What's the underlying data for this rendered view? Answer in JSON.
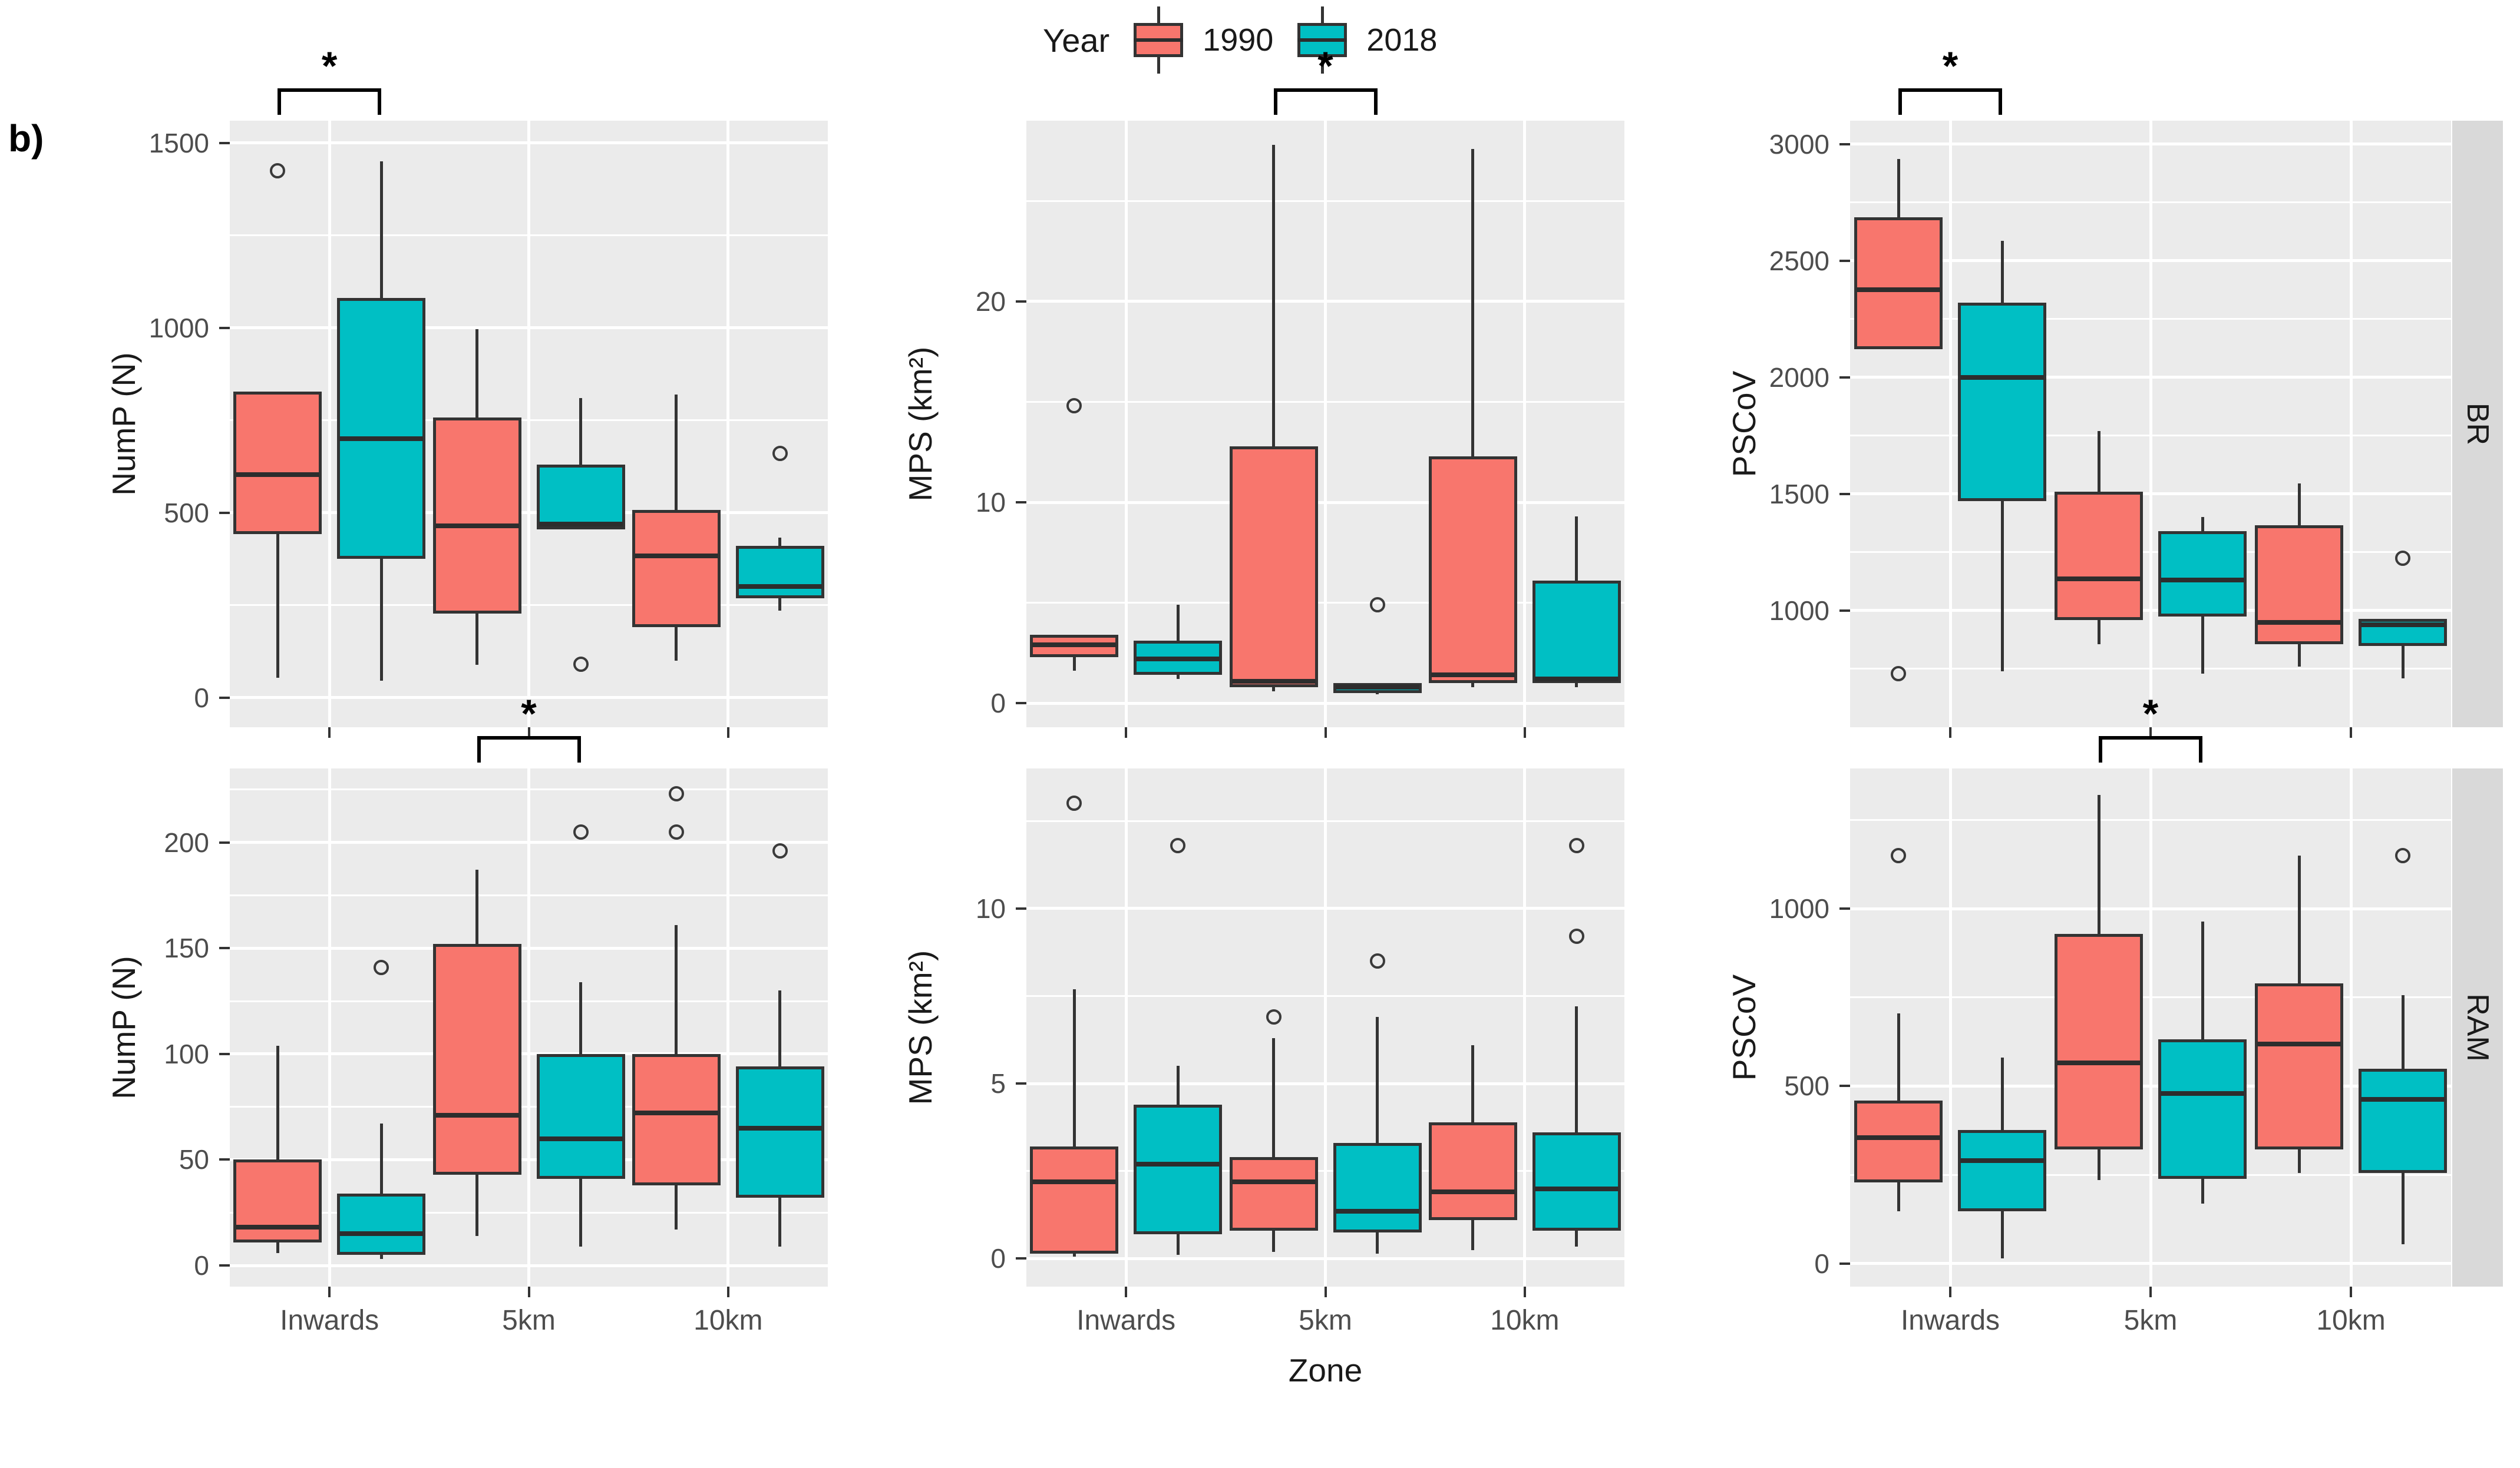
{
  "figure_label": "b)",
  "legend": {
    "title": "Year",
    "entries": [
      {
        "label": "1990",
        "color": "#F8766D"
      },
      {
        "label": "2018",
        "color": "#00BFC4"
      }
    ]
  },
  "colors": {
    "series_1990": "#F8766D",
    "series_2018": "#00BFC4",
    "box_border": "#333333",
    "panel_background": "#EBEBEB",
    "gridline": "#FFFFFF",
    "strip_background": "#D9D9D9",
    "tick_text": "#4D4D4D",
    "significance": "#000000"
  },
  "chart_data": {
    "type": "boxplot-facets",
    "x_title": "Zone",
    "categories": [
      "Inwards",
      "5km",
      "10km"
    ],
    "series_names": [
      "1990",
      "2018"
    ],
    "facet_rows": [
      "BR",
      "RAM"
    ],
    "panels": [
      {
        "facet": "BR",
        "metric": "NumP (N)",
        "row": 0,
        "col": 0,
        "yticks": [
          0,
          500,
          1000,
          1500
        ],
        "ylim": [
          -80,
          1560
        ],
        "significance": {
          "category": "Inwards",
          "label": "*"
        },
        "boxes": [
          {
            "category": "Inwards",
            "year": "1990",
            "whisker_low": 54,
            "q1": 442,
            "median": 603,
            "q3": 828,
            "whisker_high": 828,
            "outliers": [
              1424
            ]
          },
          {
            "category": "Inwards",
            "year": "2018",
            "whisker_low": 45,
            "q1": 375,
            "median": 700,
            "q3": 1080,
            "whisker_high": 1450,
            "outliers": []
          },
          {
            "category": "5km",
            "year": "1990",
            "whisker_low": 89,
            "q1": 228,
            "median": 465,
            "q3": 757,
            "whisker_high": 996,
            "outliers": []
          },
          {
            "category": "5km",
            "year": "2018",
            "whisker_low": 455,
            "q1": 455,
            "median": 470,
            "q3": 630,
            "whisker_high": 810,
            "outliers": [
              90
            ]
          },
          {
            "category": "10km",
            "year": "1990",
            "whisker_low": 100,
            "q1": 190,
            "median": 383,
            "q3": 508,
            "whisker_high": 820,
            "outliers": []
          },
          {
            "category": "10km",
            "year": "2018",
            "whisker_low": 235,
            "q1": 268,
            "median": 300,
            "q3": 410,
            "whisker_high": 432,
            "outliers": [
              660
            ]
          }
        ]
      },
      {
        "facet": "BR",
        "metric": "MPS (km²)",
        "row": 0,
        "col": 1,
        "yticks": [
          0,
          10,
          20
        ],
        "ylim": [
          -1.2,
          29
        ],
        "significance": {
          "category": "5km",
          "label": "*"
        },
        "boxes": [
          {
            "category": "Inwards",
            "year": "1990",
            "whisker_low": 1.6,
            "q1": 2.3,
            "median": 2.9,
            "q3": 3.4,
            "whisker_high": 3.4,
            "outliers": [
              14.8
            ]
          },
          {
            "category": "Inwards",
            "year": "2018",
            "whisker_low": 1.2,
            "q1": 1.4,
            "median": 2.2,
            "q3": 3.1,
            "whisker_high": 4.9,
            "outliers": []
          },
          {
            "category": "5km",
            "year": "1990",
            "whisker_low": 0.6,
            "q1": 0.8,
            "median": 1.1,
            "q3": 12.8,
            "whisker_high": 27.8,
            "outliers": []
          },
          {
            "category": "5km",
            "year": "2018",
            "whisker_low": 0.45,
            "q1": 0.5,
            "median": 0.8,
            "q3": 1.0,
            "whisker_high": 1.0,
            "outliers": [
              4.9
            ]
          },
          {
            "category": "10km",
            "year": "1990",
            "whisker_low": 0.8,
            "q1": 1.0,
            "median": 1.4,
            "q3": 12.3,
            "whisker_high": 27.6,
            "outliers": []
          },
          {
            "category": "10km",
            "year": "2018",
            "whisker_low": 0.8,
            "q1": 1.0,
            "median": 1.2,
            "q3": 6.1,
            "whisker_high": 9.3,
            "outliers": []
          }
        ]
      },
      {
        "facet": "BR",
        "metric": "PSCoV",
        "row": 0,
        "col": 2,
        "yticks": [
          1000,
          1500,
          2000,
          2500,
          3000
        ],
        "ylim": [
          500,
          3100
        ],
        "significance": {
          "category": "Inwards",
          "label": "*"
        },
        "boxes": [
          {
            "category": "Inwards",
            "year": "1990",
            "whisker_low": 2120,
            "q1": 2120,
            "median": 2375,
            "q3": 2685,
            "whisker_high": 2935,
            "outliers": [
              730
            ]
          },
          {
            "category": "Inwards",
            "year": "2018",
            "whisker_low": 740,
            "q1": 1470,
            "median": 2000,
            "q3": 2320,
            "whisker_high": 2585,
            "outliers": []
          },
          {
            "category": "5km",
            "year": "1990",
            "whisker_low": 855,
            "q1": 960,
            "median": 1135,
            "q3": 1510,
            "whisker_high": 1770,
            "outliers": []
          },
          {
            "category": "5km",
            "year": "2018",
            "whisker_low": 730,
            "q1": 975,
            "median": 1130,
            "q3": 1340,
            "whisker_high": 1400,
            "outliers": []
          },
          {
            "category": "10km",
            "year": "1990",
            "whisker_low": 760,
            "q1": 855,
            "median": 950,
            "q3": 1365,
            "whisker_high": 1545,
            "outliers": []
          },
          {
            "category": "10km",
            "year": "2018",
            "whisker_low": 710,
            "q1": 848,
            "median": 940,
            "q3": 965,
            "whisker_high": 965,
            "outliers": [
              1225
            ]
          }
        ]
      },
      {
        "facet": "RAM",
        "metric": "NumP (N)",
        "row": 1,
        "col": 0,
        "yticks": [
          0,
          50,
          100,
          150,
          200
        ],
        "ylim": [
          -10,
          235
        ],
        "significance": {
          "category": "5km",
          "label": "*"
        },
        "boxes": [
          {
            "category": "Inwards",
            "year": "1990",
            "whisker_low": 6,
            "q1": 11,
            "median": 18,
            "q3": 50,
            "whisker_high": 104,
            "outliers": []
          },
          {
            "category": "Inwards",
            "year": "2018",
            "whisker_low": 3,
            "q1": 5,
            "median": 15,
            "q3": 34,
            "whisker_high": 67,
            "outliers": [
              141
            ]
          },
          {
            "category": "5km",
            "year": "1990",
            "whisker_low": 14,
            "q1": 43,
            "median": 71,
            "q3": 152,
            "whisker_high": 187,
            "outliers": []
          },
          {
            "category": "5km",
            "year": "2018",
            "whisker_low": 9,
            "q1": 41,
            "median": 60,
            "q3": 100,
            "whisker_high": 134,
            "outliers": [
              205
            ]
          },
          {
            "category": "10km",
            "year": "1990",
            "whisker_low": 17,
            "q1": 38,
            "median": 72,
            "q3": 100,
            "whisker_high": 161,
            "outliers": [
              223,
              205
            ]
          },
          {
            "category": "10km",
            "year": "2018",
            "whisker_low": 9,
            "q1": 32,
            "median": 65,
            "q3": 94,
            "whisker_high": 130,
            "outliers": [
              196
            ]
          }
        ]
      },
      {
        "facet": "RAM",
        "metric": "MPS (km²)",
        "row": 1,
        "col": 1,
        "yticks": [
          0,
          5,
          10
        ],
        "ylim": [
          -0.8,
          14
        ],
        "significance": null,
        "boxes": [
          {
            "category": "Inwards",
            "year": "1990",
            "whisker_low": 0.05,
            "q1": 0.15,
            "median": 2.2,
            "q3": 3.2,
            "whisker_high": 7.7,
            "outliers": [
              13.0
            ]
          },
          {
            "category": "Inwards",
            "year": "2018",
            "whisker_low": 0.1,
            "q1": 0.7,
            "median": 2.7,
            "q3": 4.4,
            "whisker_high": 5.5,
            "outliers": [
              11.8
            ]
          },
          {
            "category": "5km",
            "year": "1990",
            "whisker_low": 0.2,
            "q1": 0.8,
            "median": 2.2,
            "q3": 2.9,
            "whisker_high": 6.3,
            "outliers": [
              6.9
            ]
          },
          {
            "category": "5km",
            "year": "2018",
            "whisker_low": 0.15,
            "q1": 0.75,
            "median": 1.35,
            "q3": 3.3,
            "whisker_high": 6.9,
            "outliers": [
              8.5
            ]
          },
          {
            "category": "10km",
            "year": "1990",
            "whisker_low": 0.25,
            "q1": 1.1,
            "median": 1.9,
            "q3": 3.9,
            "whisker_high": 6.1,
            "outliers": []
          },
          {
            "category": "10km",
            "year": "2018",
            "whisker_low": 0.35,
            "q1": 0.8,
            "median": 2.0,
            "q3": 3.6,
            "whisker_high": 7.2,
            "outliers": [
              11.8,
              9.2
            ]
          }
        ]
      },
      {
        "facet": "RAM",
        "metric": "PSCoV",
        "row": 1,
        "col": 2,
        "yticks": [
          0,
          500,
          1000
        ],
        "ylim": [
          -65,
          1395
        ],
        "significance": {
          "category": "5km",
          "label": "*"
        },
        "boxes": [
          {
            "category": "Inwards",
            "year": "1990",
            "whisker_low": 148,
            "q1": 228,
            "median": 355,
            "q3": 459,
            "whisker_high": 704,
            "outliers": [
              1149
            ]
          },
          {
            "category": "Inwards",
            "year": "2018",
            "whisker_low": 14,
            "q1": 148,
            "median": 290,
            "q3": 376,
            "whisker_high": 580,
            "outliers": []
          },
          {
            "category": "5km",
            "year": "1990",
            "whisker_low": 235,
            "q1": 321,
            "median": 566,
            "q3": 928,
            "whisker_high": 1321,
            "outliers": []
          },
          {
            "category": "5km",
            "year": "2018",
            "whisker_low": 169,
            "q1": 238,
            "median": 480,
            "q3": 631,
            "whisker_high": 963,
            "outliers": []
          },
          {
            "category": "10km",
            "year": "1990",
            "whisker_low": 255,
            "q1": 321,
            "median": 618,
            "q3": 790,
            "whisker_high": 1149,
            "outliers": []
          },
          {
            "category": "10km",
            "year": "2018",
            "whisker_low": 55,
            "q1": 255,
            "median": 462,
            "q3": 549,
            "whisker_high": 756,
            "outliers": [
              1149
            ]
          }
        ]
      }
    ]
  }
}
